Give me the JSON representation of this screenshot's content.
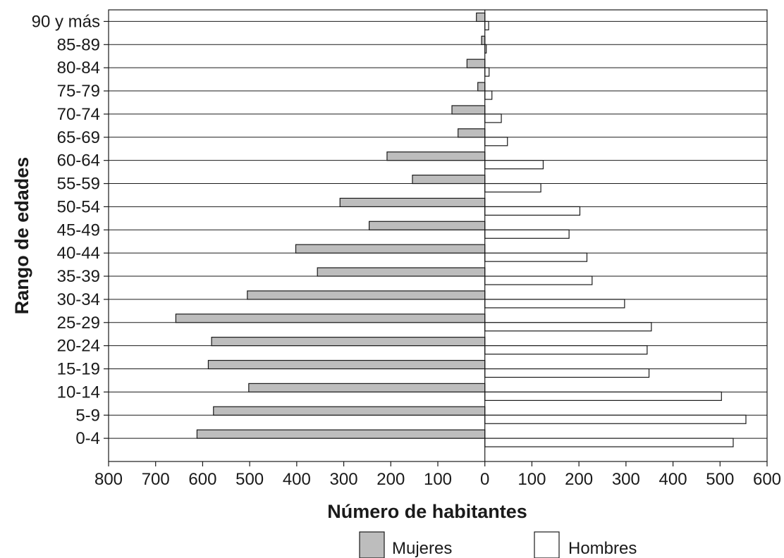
{
  "chart_data": {
    "type": "bar",
    "orientation": "horizontal",
    "categories": [
      "0-4",
      "5-9",
      "10-14",
      "15-19",
      "20-24",
      "25-29",
      "30-34",
      "35-39",
      "40-44",
      "45-49",
      "50-54",
      "55-59",
      "60-64",
      "65-69",
      "70-74",
      "75-79",
      "80-84",
      "85-89",
      "90 y más"
    ],
    "series": [
      {
        "name": "Mujeres",
        "color": "#bdbdbd",
        "values": [
          612,
          577,
          502,
          588,
          581,
          657,
          505,
          356,
          402,
          246,
          308,
          154,
          208,
          57,
          70,
          15,
          38,
          7,
          18
        ]
      },
      {
        "name": "Hombres",
        "color": "#ffffff",
        "values": [
          528,
          555,
          503,
          349,
          345,
          354,
          297,
          228,
          217,
          179,
          202,
          119,
          124,
          48,
          35,
          15,
          9,
          3,
          8
        ]
      }
    ],
    "xlabel": "Número de habitantes",
    "ylabel": "Rango de edades",
    "xlim": [
      -800,
      600
    ],
    "xticks": [
      -800,
      -700,
      -600,
      -500,
      -400,
      -300,
      -200,
      -100,
      0,
      100,
      200,
      300,
      400,
      500,
      600
    ],
    "xtick_labels": [
      "800",
      "700",
      "600",
      "500",
      "400",
      "300",
      "200",
      "100",
      "0",
      "100",
      "200",
      "300",
      "400",
      "500",
      "600"
    ],
    "grid": "horizontal",
    "legend_position": "bottom"
  }
}
